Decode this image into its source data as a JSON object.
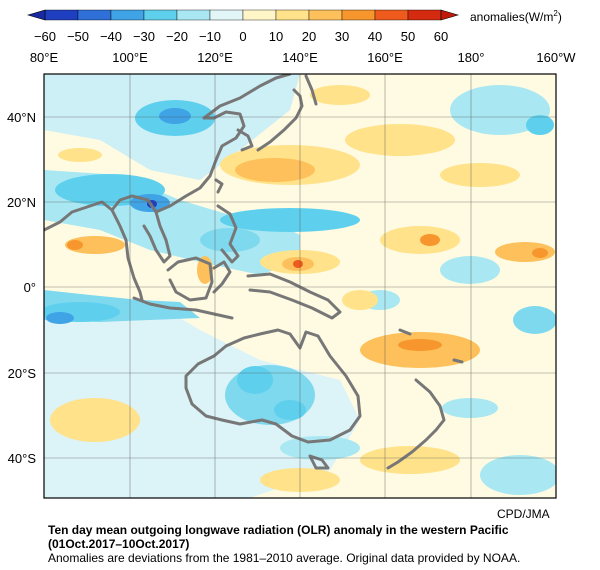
{
  "colorbar": {
    "ticks": [
      "−60",
      "−50",
      "−40",
      "−30",
      "−20",
      "−10",
      "0",
      "10",
      "20",
      "30",
      "40",
      "50",
      "60"
    ],
    "unit_label": "anomalies(W/m",
    "unit_sup": "2",
    "unit_close": ")",
    "colors": [
      "#1e3fbf",
      "#2f6fd8",
      "#3fa3e6",
      "#5ed0ee",
      "#a9e8f2",
      "#e2f6f7",
      "#ffffff",
      "#fff6c8",
      "#ffe28a",
      "#fdc05a",
      "#f7962c",
      "#ee5b1c",
      "#d42a10"
    ]
  },
  "axes": {
    "lon_labels": [
      "80°E",
      "100°E",
      "120°E",
      "140°E",
      "160°E",
      "180°",
      "160°W"
    ],
    "lat_labels": [
      "40°N",
      "20°N",
      "0°",
      "20°S",
      "40°S"
    ]
  },
  "credit": "CPD/JMA",
  "caption": {
    "title": "Ten day mean outgoing longwave radiation (OLR) anomaly in the western Pacific",
    "period": "(01Oct.2017–10Oct.2017)",
    "note": "Anomalies are deviations from the 1981–2010 average. Original data provided by NOAA."
  }
}
